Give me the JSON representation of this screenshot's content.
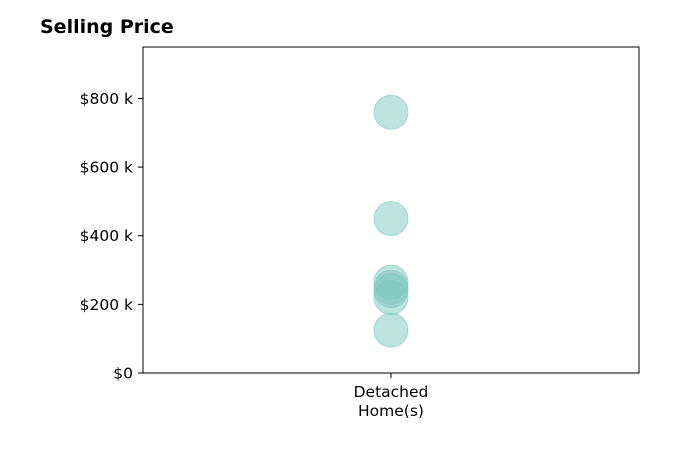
{
  "chart_data": {
    "type": "scatter",
    "title": "Selling Price",
    "xlabel": "",
    "ylabel": "",
    "categories": [
      "Detached\nHome(s)"
    ],
    "x_tick_lines": [
      "Detached",
      "Home(s)"
    ],
    "y_ticks": [
      0,
      200000,
      400000,
      600000,
      800000
    ],
    "y_tick_labels": [
      "$0",
      "$200 k",
      "$400 k",
      "$600 k",
      "$800 k"
    ],
    "ylim": [
      0,
      950000
    ],
    "grid": false,
    "series": [
      {
        "category": "Detached\nHome(s)",
        "values": [
          760000,
          450000,
          265000,
          250000,
          240000,
          220000,
          125000
        ]
      }
    ],
    "marker_color": "#7ec8c0",
    "marker_alpha": 0.5
  }
}
